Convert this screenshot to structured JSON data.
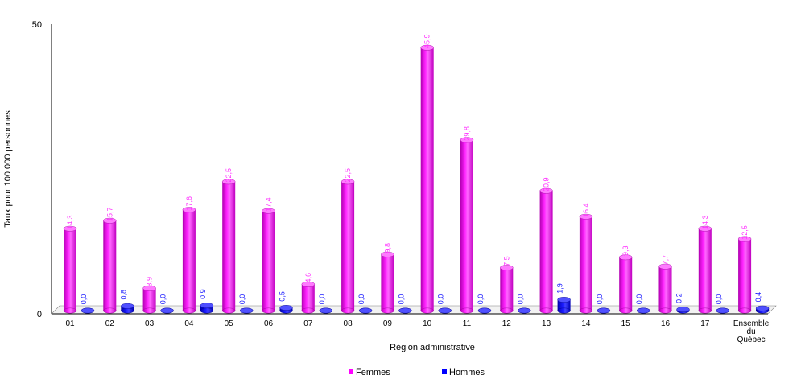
{
  "chart_data": {
    "type": "bar",
    "title": "",
    "xlabel": "Région administrative",
    "ylabel": "Taux pour 100 000 personnes",
    "ylim": [
      0,
      50
    ],
    "yticks": [
      "0",
      "50"
    ],
    "categories": [
      "01",
      "02",
      "03",
      "04",
      "05",
      "06",
      "07",
      "08",
      "09",
      "10",
      "11",
      "12",
      "13",
      "14",
      "15",
      "16",
      "17",
      "Ensemble du Québec"
    ],
    "series": [
      {
        "name": "Femmes",
        "color": "#ff00ff",
        "values": [
          14.3,
          15.7,
          3.9,
          17.6,
          22.5,
          17.4,
          4.6,
          22.5,
          9.8,
          45.9,
          29.8,
          7.5,
          20.9,
          16.4,
          9.3,
          7.7,
          14.3,
          12.5
        ],
        "labels": [
          "14,3",
          "15,7",
          "3,9",
          "17,6",
          "22,5",
          "17,4",
          "4,6",
          "22,5",
          "9,8",
          "45,9",
          "29,8",
          "7,5",
          "20,9",
          "16,4",
          "9,3",
          "7,7",
          "14,3",
          "12,5"
        ]
      },
      {
        "name": "Hommes",
        "color": "#0000ff",
        "values": [
          0.0,
          0.8,
          0.0,
          0.9,
          0.0,
          0.5,
          0.0,
          0.0,
          0.0,
          0.0,
          0.0,
          0.0,
          1.9,
          0.0,
          0.0,
          0.2,
          0.0,
          0.4
        ],
        "labels": [
          "0,0",
          "0,8",
          "0,0",
          "0,9",
          "0,0",
          "0,5",
          "0,0",
          "0,0",
          "0,0",
          "0,0",
          "0,0",
          "0,0",
          "1,9",
          "0,0",
          "0,0",
          "0,2",
          "0,0",
          "0,4"
        ]
      }
    ],
    "legend": {
      "position": "bottom"
    },
    "grid": false
  }
}
